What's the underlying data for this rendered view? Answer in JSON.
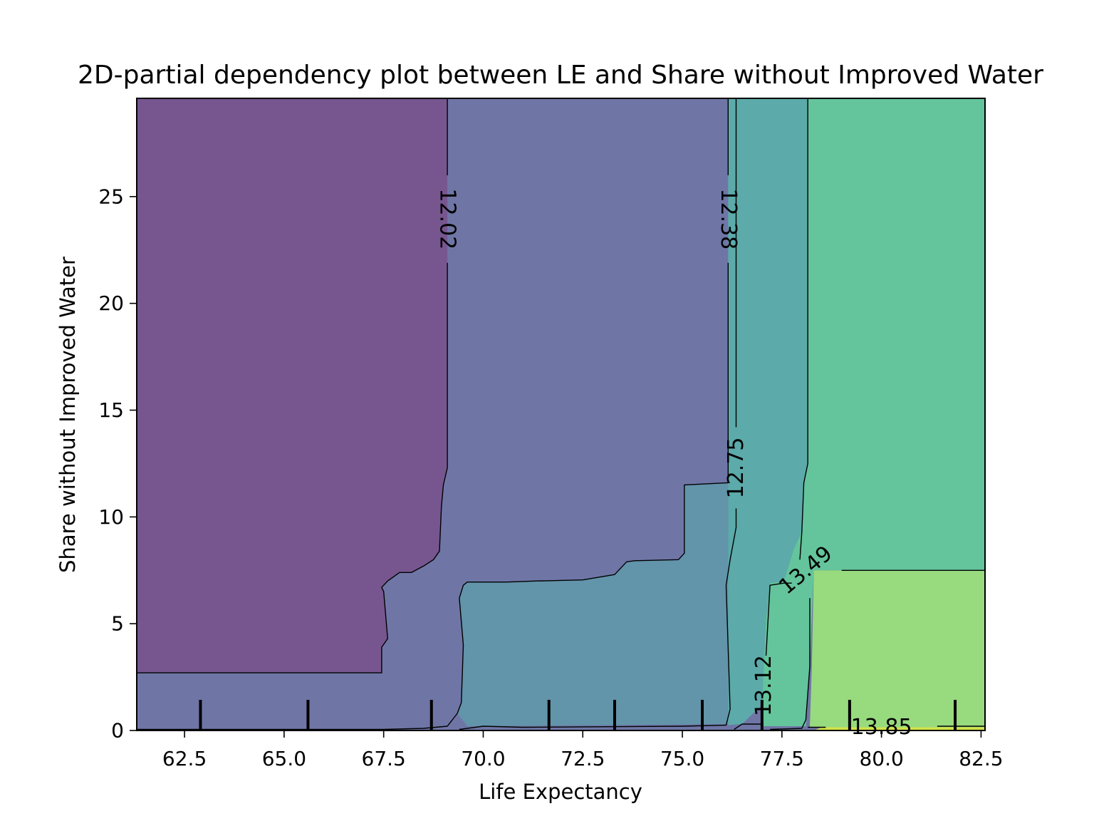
{
  "chart_data": {
    "type": "contour",
    "title": "2D-partial dependency plot between LE and Share without Improved Water",
    "xlabel": "Life Expectancy",
    "ylabel": "Share without Improved Water",
    "xlim": [
      61.3,
      82.6
    ],
    "ylim": [
      0,
      29.6
    ],
    "x_ticks": [
      "62.5",
      "65.0",
      "67.5",
      "70.0",
      "72.5",
      "75.0",
      "77.5",
      "80.0",
      "82.5"
    ],
    "y_ticks": [
      "0",
      "5",
      "10",
      "15",
      "20",
      "25"
    ],
    "contour_levels": [
      {
        "label": "12.02",
        "color": "#77568f"
      },
      {
        "label": "12.38",
        "color": "#6f76a6"
      },
      {
        "label": "12.75",
        "color": "#6294aa"
      },
      {
        "label": "13.12",
        "color": "#5caaaa"
      },
      {
        "label": "13.49",
        "color": "#64c49b"
      },
      {
        "label": "13.85",
        "color": "#98da7e"
      }
    ],
    "top_level_color": "#d1e14a",
    "rug_x": [
      62.9,
      65.6,
      68.7,
      71.65,
      73.3,
      75.5,
      77.0,
      79.2,
      81.85
    ],
    "regions": [
      {
        "level": 0,
        "points": [
          [
            61.3,
            29.6
          ],
          [
            69.1,
            29.6
          ],
          [
            69.1,
            12.3
          ],
          [
            69.0,
            11.5
          ],
          [
            68.95,
            10.5
          ],
          [
            68.9,
            8.4
          ],
          [
            68.75,
            8.0
          ],
          [
            68.5,
            7.7
          ],
          [
            68.2,
            7.4
          ],
          [
            67.9,
            7.4
          ],
          [
            67.6,
            7.0
          ],
          [
            67.45,
            6.7
          ],
          [
            67.5,
            6.5
          ],
          [
            67.6,
            4.3
          ],
          [
            67.45,
            3.9
          ],
          [
            67.45,
            2.7
          ],
          [
            61.3,
            2.7
          ]
        ]
      },
      {
        "level": 2,
        "points": [
          [
            69.35,
            0.8
          ],
          [
            69.45,
            1.3
          ],
          [
            69.5,
            4.0
          ],
          [
            69.4,
            6.2
          ],
          [
            69.5,
            6.8
          ],
          [
            69.6,
            6.95
          ],
          [
            70.6,
            6.95
          ],
          [
            71.35,
            7.0
          ],
          [
            72.5,
            7.05
          ],
          [
            73.3,
            7.3
          ],
          [
            73.6,
            7.9
          ],
          [
            73.8,
            7.95
          ],
          [
            74.9,
            8.0
          ],
          [
            75.05,
            8.3
          ],
          [
            75.05,
            11.5
          ],
          [
            76.15,
            11.6
          ],
          [
            76.15,
            0.3
          ],
          [
            69.6,
            0.2
          ]
        ]
      },
      {
        "level": 3,
        "points": [
          [
            76.15,
            29.6
          ],
          [
            78.15,
            29.6
          ],
          [
            78.15,
            12.5
          ],
          [
            78.05,
            11.6
          ],
          [
            78.0,
            9.3
          ],
          [
            77.8,
            8.5
          ],
          [
            77.55,
            7.0
          ],
          [
            77.2,
            6.9
          ],
          [
            77.1,
            5.2
          ],
          [
            77.0,
            1.2
          ],
          [
            76.5,
            0.3
          ],
          [
            76.15,
            0.25
          ]
        ]
      },
      {
        "level": 4,
        "points": [
          [
            78.15,
            29.6
          ],
          [
            82.6,
            29.6
          ],
          [
            82.6,
            7.5
          ],
          [
            78.3,
            7.5
          ],
          [
            78.2,
            3.0
          ],
          [
            78.1,
            0.2
          ],
          [
            77.0,
            0.2
          ],
          [
            77.0,
            1.2
          ],
          [
            77.1,
            5.2
          ],
          [
            77.2,
            6.9
          ],
          [
            77.55,
            7.0
          ],
          [
            77.8,
            8.5
          ],
          [
            78.0,
            9.3
          ],
          [
            78.05,
            11.6
          ],
          [
            78.15,
            12.5
          ]
        ]
      },
      {
        "level": 5,
        "points": [
          [
            78.3,
            7.5
          ],
          [
            82.6,
            7.5
          ],
          [
            82.6,
            0.15
          ],
          [
            78.2,
            0.15
          ],
          [
            78.25,
            3.0
          ]
        ]
      },
      {
        "level": 6,
        "points": [
          [
            78.5,
            0.15
          ],
          [
            82.6,
            0.15
          ],
          [
            82.6,
            0.0
          ],
          [
            78.3,
            0.0
          ]
        ]
      }
    ],
    "boundary_lines": [
      [
        [
          61.3,
          2.7
        ],
        [
          67.45,
          2.7
        ],
        [
          67.45,
          3.9
        ],
        [
          67.6,
          4.3
        ],
        [
          67.5,
          6.5
        ],
        [
          67.45,
          6.7
        ],
        [
          67.6,
          7.0
        ],
        [
          67.9,
          7.4
        ],
        [
          68.2,
          7.4
        ],
        [
          68.5,
          7.7
        ],
        [
          68.75,
          8.0
        ],
        [
          68.9,
          8.4
        ],
        [
          68.95,
          10.5
        ],
        [
          69.0,
          11.5
        ],
        [
          69.1,
          12.3
        ],
        [
          69.1,
          21.9
        ]
      ],
      [
        [
          69.1,
          26.0
        ],
        [
          69.1,
          29.6
        ]
      ],
      [
        [
          61.3,
          0.05
        ],
        [
          67.5,
          0.05
        ],
        [
          68.5,
          0.1
        ],
        [
          69.1,
          0.2
        ],
        [
          69.35,
          0.8
        ],
        [
          69.45,
          1.3
        ],
        [
          69.5,
          4.0
        ],
        [
          69.4,
          6.2
        ],
        [
          69.5,
          6.8
        ],
        [
          69.6,
          6.95
        ],
        [
          70.6,
          6.95
        ],
        [
          71.35,
          7.0
        ],
        [
          72.5,
          7.05
        ],
        [
          73.3,
          7.3
        ],
        [
          73.6,
          7.9
        ],
        [
          73.8,
          7.95
        ],
        [
          74.9,
          8.0
        ],
        [
          75.05,
          8.3
        ],
        [
          75.05,
          11.5
        ],
        [
          76.15,
          11.6
        ],
        [
          76.15,
          21.9
        ]
      ],
      [
        [
          76.15,
          26.0
        ],
        [
          76.15,
          29.6
        ]
      ],
      [
        [
          69.4,
          0.05
        ],
        [
          70.0,
          0.2
        ],
        [
          71.0,
          0.15
        ],
        [
          75.0,
          0.2
        ],
        [
          76.1,
          0.25
        ],
        [
          76.2,
          1.0
        ],
        [
          76.1,
          6.8
        ],
        [
          76.2,
          8.0
        ],
        [
          76.35,
          9.5
        ],
        [
          76.35,
          10.4
        ]
      ],
      [
        [
          76.35,
          14.2
        ],
        [
          76.35,
          29.6
        ]
      ],
      [
        [
          76.3,
          0.05
        ],
        [
          76.5,
          0.3
        ],
        [
          77.0,
          0.3
        ],
        [
          77.0,
          0.7
        ]
      ],
      [
        [
          77.1,
          3.5
        ],
        [
          77.2,
          6.8
        ],
        [
          77.55,
          6.9
        ],
        [
          77.75,
          6.9
        ]
      ],
      [
        [
          78.15,
          29.6
        ],
        [
          78.15,
          12.5
        ],
        [
          78.05,
          11.6
        ],
        [
          78.0,
          9.3
        ],
        [
          77.95,
          8.0
        ]
      ],
      [
        [
          78.2,
          6.2
        ],
        [
          78.2,
          3.0
        ],
        [
          78.1,
          0.5
        ],
        [
          78.0,
          0.1
        ],
        [
          77.2,
          0.05
        ]
      ],
      [
        [
          79.0,
          7.5
        ],
        [
          82.6,
          7.5
        ]
      ],
      [
        [
          78.15,
          0.15
        ],
        [
          78.6,
          0.15
        ]
      ],
      [
        [
          81.4,
          0.2
        ],
        [
          82.6,
          0.2
        ]
      ]
    ],
    "labels": [
      {
        "text": "12.02",
        "x": 69.1,
        "y": 23.95,
        "angle": 90
      },
      {
        "text": "12.38",
        "x": 76.15,
        "y": 23.95,
        "angle": 90
      },
      {
        "text": "12.75",
        "x": 76.35,
        "y": 12.3,
        "angle": -90
      },
      {
        "text": "13.12",
        "x": 77.05,
        "y": 2.1,
        "angle": -90
      },
      {
        "text": "13.49",
        "x": 78.1,
        "y": 7.5,
        "angle": -40
      },
      {
        "text": "13.85",
        "x": 80.0,
        "y": 0.15,
        "angle": 0
      }
    ]
  }
}
